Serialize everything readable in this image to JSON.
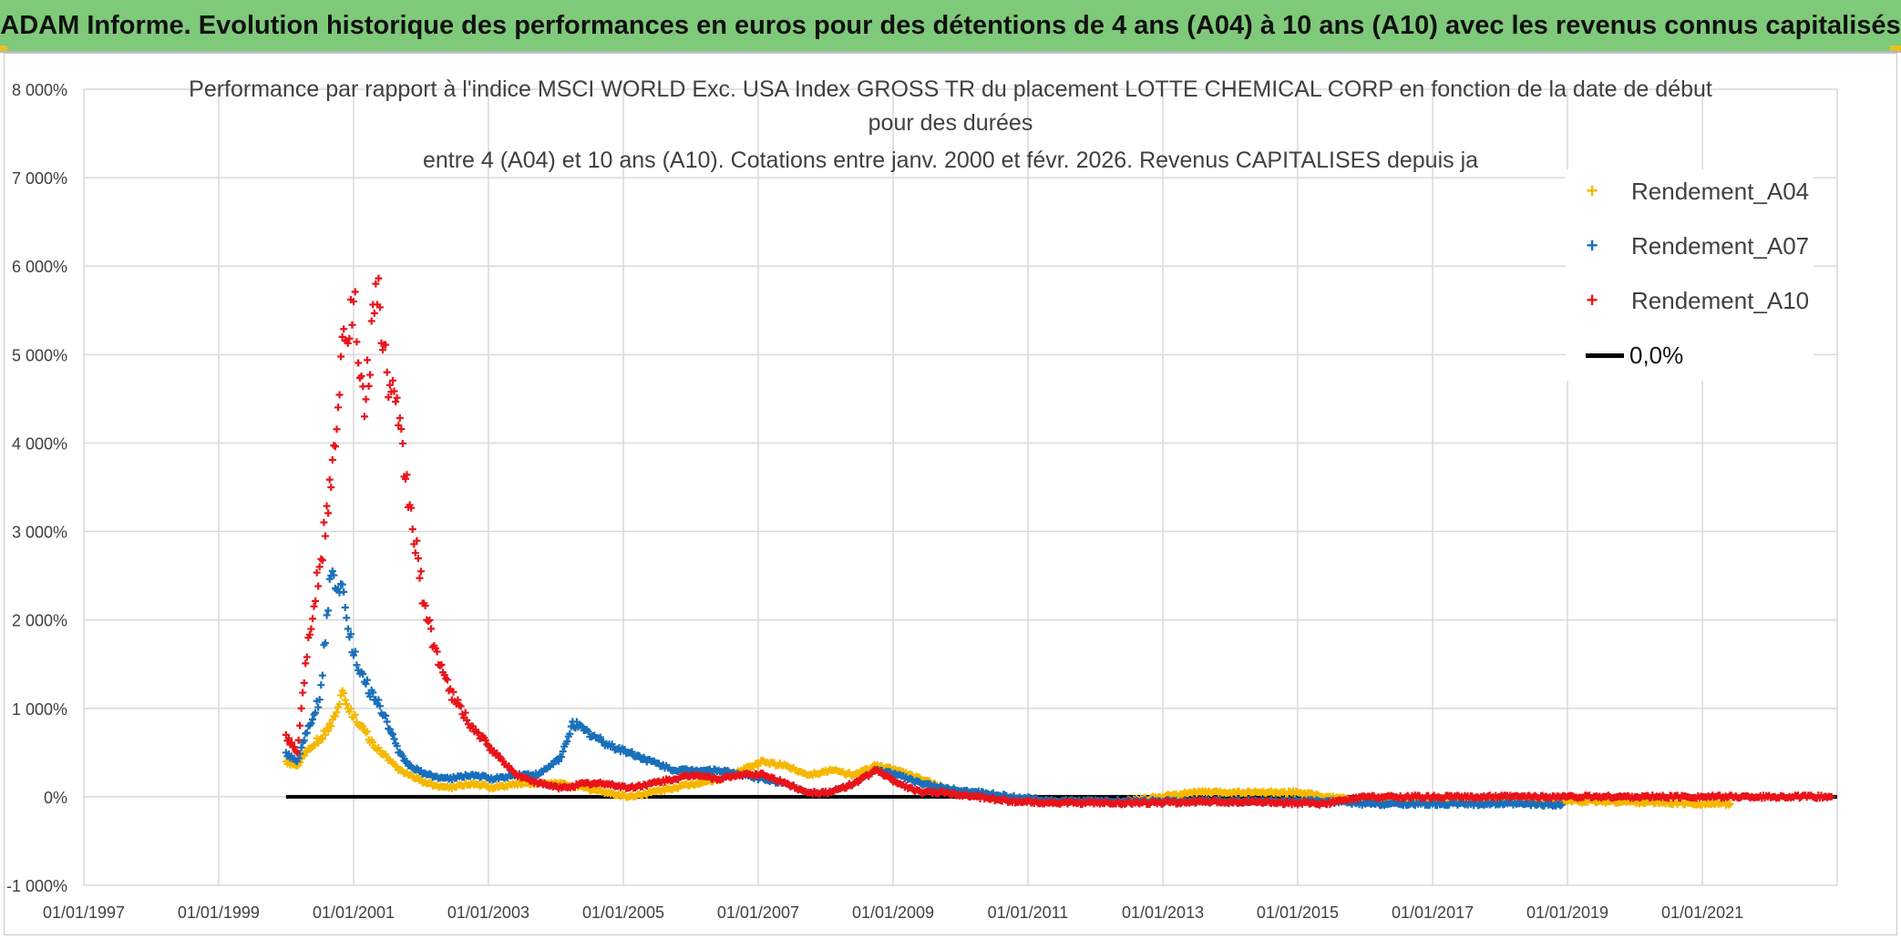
{
  "banner": {
    "title": "ADAM Informe. Evolution historique des performances en euros pour des détentions de 4 ans (A04) à 10 ans (A10) avec les revenus connus capitalisés"
  },
  "chart_data": {
    "type": "scatter",
    "title_lines": [
      "Performance par rapport à l'indice MSCI WORLD Exc. USA Index GROSS TR  du placement LOTTE CHEMICAL CORP en fonction de la date de début",
      "pour des durées",
      "entre 4 (A04) et 10 ans (A10). Cotations entre janv. 2000 et févr. 2026. Revenus CAPITALISES depuis ja"
    ],
    "xlabel": "",
    "ylabel": "",
    "x_tick_labels": [
      "01/01/1997",
      "01/01/1999",
      "01/01/2001",
      "01/01/2003",
      "01/01/2005",
      "01/01/2007",
      "01/01/2009",
      "01/01/2011",
      "01/01/2013",
      "01/01/2015",
      "01/01/2017",
      "01/01/2019",
      "01/01/2021"
    ],
    "y_tick_labels": [
      "-1 000%",
      "0%",
      "1 000%",
      "2 000%",
      "3 000%",
      "4 000%",
      "5 000%",
      "6 000%",
      "7 000%",
      "8 000%"
    ],
    "xlim": [
      "1997-01-01",
      "2023-01-01"
    ],
    "ylim": [
      -1000,
      8000
    ],
    "y_unit": "%",
    "grid": true,
    "legend_position": "top-right",
    "series": [
      {
        "name": "Rendement_A04",
        "color": "#f5b800",
        "marker": "+",
        "points": [
          [
            "2000-01",
            400
          ],
          [
            "2000-03",
            350
          ],
          [
            "2000-05",
            550
          ],
          [
            "2000-07",
            650
          ],
          [
            "2000-09",
            800
          ],
          [
            "2000-11",
            1200
          ],
          [
            "2001-01",
            900
          ],
          [
            "2001-03",
            750
          ],
          [
            "2001-05",
            550
          ],
          [
            "2001-07",
            450
          ],
          [
            "2001-09",
            300
          ],
          [
            "2001-11",
            250
          ],
          [
            "2002-02",
            150
          ],
          [
            "2002-06",
            100
          ],
          [
            "2002-10",
            150
          ],
          [
            "2003-02",
            100
          ],
          [
            "2003-06",
            150
          ],
          [
            "2003-10",
            150
          ],
          [
            "2004-02",
            150
          ],
          [
            "2004-06",
            100
          ],
          [
            "2004-10",
            50
          ],
          [
            "2005-02",
            0
          ],
          [
            "2005-06",
            50
          ],
          [
            "2005-10",
            100
          ],
          [
            "2006-02",
            150
          ],
          [
            "2006-06",
            200
          ],
          [
            "2006-10",
            300
          ],
          [
            "2007-02",
            400
          ],
          [
            "2007-06",
            350
          ],
          [
            "2007-10",
            250
          ],
          [
            "2008-02",
            300
          ],
          [
            "2008-06",
            250
          ],
          [
            "2008-10",
            350
          ],
          [
            "2009-02",
            300
          ],
          [
            "2009-06",
            200
          ],
          [
            "2009-10",
            100
          ],
          [
            "2010-04",
            50
          ],
          [
            "2010-10",
            0
          ],
          [
            "2011-06",
            -50
          ],
          [
            "2012-06",
            -50
          ],
          [
            "2013-01",
            0
          ],
          [
            "2013-06",
            50
          ],
          [
            "2014-01",
            50
          ],
          [
            "2014-06",
            50
          ],
          [
            "2015-01",
            50
          ],
          [
            "2015-06",
            0
          ],
          [
            "2016-01",
            -50
          ],
          [
            "2017-01",
            -50
          ],
          [
            "2018-01",
            -50
          ],
          [
            "2019-01",
            -50
          ],
          [
            "2020-01",
            -60
          ],
          [
            "2021-01",
            -80
          ],
          [
            "2021-06",
            -80
          ]
        ]
      },
      {
        "name": "Rendement_A07",
        "color": "#1a6fba",
        "marker": "+",
        "points": [
          [
            "2000-01",
            500
          ],
          [
            "2000-03",
            400
          ],
          [
            "2000-05",
            800
          ],
          [
            "2000-07",
            1100
          ],
          [
            "2000-09",
            2500
          ],
          [
            "2000-11",
            2400
          ],
          [
            "2001-01",
            1600
          ],
          [
            "2001-03",
            1300
          ],
          [
            "2001-05",
            1100
          ],
          [
            "2001-07",
            850
          ],
          [
            "2001-09",
            500
          ],
          [
            "2001-11",
            350
          ],
          [
            "2002-02",
            250
          ],
          [
            "2002-06",
            200
          ],
          [
            "2002-10",
            250
          ],
          [
            "2003-02",
            200
          ],
          [
            "2003-06",
            250
          ],
          [
            "2003-10",
            250
          ],
          [
            "2004-02",
            450
          ],
          [
            "2004-04",
            850
          ],
          [
            "2004-06",
            750
          ],
          [
            "2004-10",
            600
          ],
          [
            "2005-02",
            500
          ],
          [
            "2005-06",
            400
          ],
          [
            "2005-10",
            300
          ],
          [
            "2006-02",
            300
          ],
          [
            "2006-06",
            300
          ],
          [
            "2006-10",
            250
          ],
          [
            "2007-02",
            200
          ],
          [
            "2007-06",
            150
          ],
          [
            "2007-10",
            50
          ],
          [
            "2008-02",
            50
          ],
          [
            "2008-06",
            150
          ],
          [
            "2008-10",
            300
          ],
          [
            "2009-02",
            250
          ],
          [
            "2009-06",
            150
          ],
          [
            "2009-10",
            100
          ],
          [
            "2010-04",
            50
          ],
          [
            "2010-10",
            0
          ],
          [
            "2011-06",
            -50
          ],
          [
            "2012-06",
            -50
          ],
          [
            "2013-01",
            -50
          ],
          [
            "2013-06",
            -50
          ],
          [
            "2014-01",
            -50
          ],
          [
            "2014-06",
            -50
          ],
          [
            "2015-01",
            -50
          ],
          [
            "2015-06",
            -50
          ],
          [
            "2016-01",
            -80
          ],
          [
            "2017-01",
            -80
          ],
          [
            "2018-01",
            -80
          ],
          [
            "2018-12",
            -90
          ]
        ]
      },
      {
        "name": "Rendement_A10",
        "color": "#e8141a",
        "marker": "+",
        "points": [
          [
            "2000-01",
            700
          ],
          [
            "2000-03",
            500
          ],
          [
            "2000-05",
            1800
          ],
          [
            "2000-07",
            2600
          ],
          [
            "2000-09",
            3500
          ],
          [
            "2000-11",
            5200
          ],
          [
            "2001-01",
            5600
          ],
          [
            "2001-03",
            4300
          ],
          [
            "2001-05",
            5800
          ],
          [
            "2001-07",
            4800
          ],
          [
            "2001-09",
            4200
          ],
          [
            "2001-11",
            3300
          ],
          [
            "2002-02",
            2000
          ],
          [
            "2002-06",
            1200
          ],
          [
            "2002-10",
            800
          ],
          [
            "2003-02",
            500
          ],
          [
            "2003-06",
            250
          ],
          [
            "2003-10",
            150
          ],
          [
            "2004-02",
            100
          ],
          [
            "2004-06",
            150
          ],
          [
            "2004-10",
            150
          ],
          [
            "2005-02",
            100
          ],
          [
            "2005-06",
            150
          ],
          [
            "2005-10",
            200
          ],
          [
            "2006-02",
            250
          ],
          [
            "2006-06",
            200
          ],
          [
            "2006-10",
            250
          ],
          [
            "2007-02",
            250
          ],
          [
            "2007-06",
            150
          ],
          [
            "2007-10",
            50
          ],
          [
            "2008-02",
            50
          ],
          [
            "2008-06",
            150
          ],
          [
            "2008-10",
            300
          ],
          [
            "2009-02",
            150
          ],
          [
            "2009-06",
            50
          ],
          [
            "2009-10",
            50
          ],
          [
            "2010-04",
            0
          ],
          [
            "2010-10",
            -50
          ],
          [
            "2011-06",
            -70
          ],
          [
            "2012-06",
            -70
          ],
          [
            "2013-06",
            -60
          ],
          [
            "2014-06",
            -60
          ],
          [
            "2015-06",
            -80
          ],
          [
            "2016-01",
            0
          ],
          [
            "2017-01",
            0
          ],
          [
            "2018-01",
            0
          ],
          [
            "2019-01",
            0
          ],
          [
            "2020-01",
            0
          ],
          [
            "2021-01",
            0
          ],
          [
            "2022-12",
            0
          ]
        ]
      }
    ],
    "reference_line": {
      "name": "0,0%",
      "value": 0,
      "color": "#000000",
      "x_start": "2000-01-01"
    }
  }
}
